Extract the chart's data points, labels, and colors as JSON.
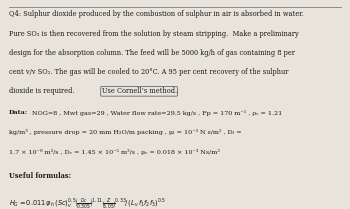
{
  "bg_color": "#e8e4dc",
  "text_color": "#1a1a1a",
  "border_color": "#666666",
  "line0": "Q4: Sulphur dioxide produced by the combustion of sulphur in air is absorbed in water.",
  "line1": "Pure SO₂ is then recovered from the solution by steam stripping.  Make a preliminary",
  "line2": "design for the absorption column. The feed will be 5000 kg/h of gas containing 8 per",
  "line3": "cent v/v SO₂. The gas will be cooled to 20°C. A 95 per cent recovery of the sulphur",
  "line4": "dioxide is required. Use Cornell’s method.",
  "data_label": "Data:",
  "data_line1": " NOG=8 , Mwt gas=29 , Water flow rate=29.5 kg/s , Fp = 170 m⁻¹ , ρᵥ = 1.21",
  "data_line2": "kg/m³ , pressure drop = 20 mm H₂O/m packing , μₗ = 10⁻³ N s/m² , Dₗ =",
  "data_line3": "1.7 × 10⁻⁹ m²/s , Dᵥ = 1.45 × 10⁻⁵ m²/s , μᵥ = 0.018 × 10⁻³ Ns/m²",
  "useful_label": "Useful formulas:",
  "figsize": [
    3.5,
    2.09
  ],
  "dpi": 100
}
